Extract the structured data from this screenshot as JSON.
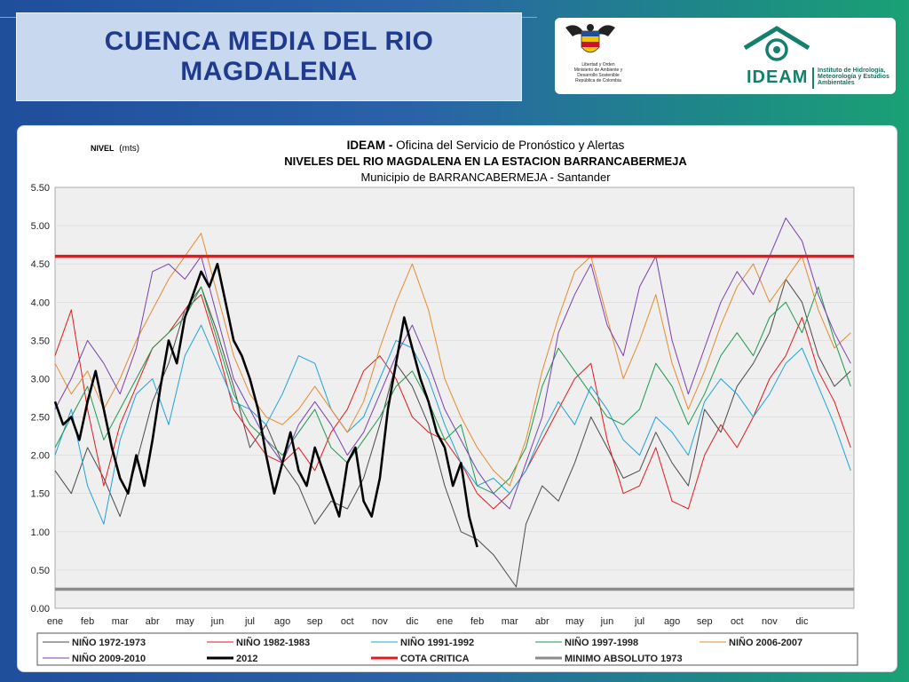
{
  "slide": {
    "title_line1": "CUENCA  MEDIA DEL RIO",
    "title_line2": "MAGDALENA"
  },
  "logos": {
    "government_text": "Libertad y Orden\nMinisterio de Ambiente y\nDesarrollo Sostenible\nRepública de Colombia",
    "ideam_name": "IDEAM",
    "ideam_subtitle": "Instituto de Hidrología, Meteorología y Estudios Ambientales"
  },
  "chart_data": {
    "type": "line",
    "title_bold": "IDEAM - ",
    "title_rest": "Oficina del Servicio de Pronóstico y Alertas",
    "subtitle": "NIVELES DEL RIO MAGDALENA EN LA ESTACION BARRANCABERMEJA",
    "location": "Municipio de BARRANCABERMEJA - Santander",
    "ylabel_bold": "NIVEL",
    "ylabel_unit": "(mts)",
    "ylim": [
      0,
      5.5
    ],
    "yticks": [
      "0.00",
      "0.50",
      "1.00",
      "1.50",
      "2.00",
      "2.50",
      "3.00",
      "3.50",
      "4.00",
      "4.50",
      "5.00",
      "5.50"
    ],
    "x_categories": [
      "ene",
      "feb",
      "mar",
      "abr",
      "may",
      "jun",
      "jul",
      "ago",
      "sep",
      "oct",
      "nov",
      "dic",
      "ene",
      "feb",
      "mar",
      "abr",
      "may",
      "jun",
      "jul",
      "ago",
      "sep",
      "oct",
      "nov",
      "dic"
    ],
    "xlim": [
      0,
      24.6
    ],
    "grid": true,
    "legend_position": "bottom",
    "reference_lines": [
      {
        "name": "COTA CRITICA",
        "value": 4.6,
        "color": "#e31a1c"
      },
      {
        "name": "MINIMO ABSOLUTO 1973",
        "value": 0.25,
        "color": "#8c8c8c"
      }
    ],
    "series": [
      {
        "name": "NIÑO 1972-1973",
        "color": "#4a4a4a",
        "width": 1,
        "x": [
          0,
          0.5,
          1,
          1.5,
          2,
          2.5,
          3,
          3.5,
          4,
          4.5,
          5,
          5.5,
          6,
          6.5,
          7,
          7.5,
          8,
          8.5,
          9,
          9.5,
          10,
          10.5,
          11,
          11.5,
          12,
          12.5,
          13,
          13.5,
          14,
          14.2,
          14.5,
          15,
          15.5,
          16,
          16.5,
          17,
          17.5,
          18,
          18.5,
          19,
          19.5,
          20,
          20.5,
          21,
          21.5,
          22,
          22.5,
          23,
          23.5,
          24,
          24.5
        ],
        "y": [
          1.8,
          1.5,
          2.1,
          1.7,
          1.2,
          1.9,
          2.7,
          3.2,
          3.9,
          4.2,
          3.6,
          2.9,
          2.1,
          2.4,
          1.9,
          1.6,
          1.1,
          1.4,
          1.3,
          1.7,
          2.4,
          3.2,
          2.9,
          2.4,
          1.6,
          1.0,
          0.9,
          0.7,
          0.4,
          0.28,
          1.1,
          1.6,
          1.4,
          1.9,
          2.5,
          2.1,
          1.7,
          1.8,
          2.3,
          1.9,
          1.6,
          2.6,
          2.3,
          2.9,
          3.2,
          3.6,
          4.3,
          4.0,
          3.3,
          2.9,
          3.1
        ]
      },
      {
        "name": "NIÑO 1982-1983",
        "color": "#e31a1c",
        "width": 1,
        "x": [
          0,
          0.5,
          1,
          1.5,
          2,
          2.5,
          3,
          3.5,
          4,
          4.5,
          5,
          5.5,
          6,
          6.5,
          7,
          7.5,
          8,
          8.5,
          9,
          9.5,
          10,
          10.5,
          11,
          11.5,
          12,
          12.5,
          13,
          13.5,
          14,
          14.5,
          15,
          15.5,
          16,
          16.5,
          17,
          17.5,
          18,
          18.5,
          19,
          19.5,
          20,
          20.5,
          21,
          21.5,
          22,
          22.5,
          23,
          23.5,
          24,
          24.5
        ],
        "y": [
          3.3,
          3.9,
          2.6,
          1.6,
          2.4,
          2.9,
          3.4,
          3.6,
          3.9,
          4.1,
          3.4,
          2.6,
          2.3,
          2.0,
          1.9,
          2.1,
          1.8,
          2.3,
          2.6,
          3.1,
          3.3,
          3.0,
          2.5,
          2.3,
          2.2,
          1.9,
          1.5,
          1.3,
          1.5,
          1.8,
          2.2,
          2.6,
          3.0,
          3.2,
          2.2,
          1.5,
          1.6,
          2.1,
          1.4,
          1.3,
          2.0,
          2.4,
          2.1,
          2.5,
          3.0,
          3.3,
          3.8,
          3.1,
          2.7,
          2.1
        ]
      },
      {
        "name": "NIÑO 1991-1992",
        "color": "#1fa2d9",
        "width": 1,
        "x": [
          0,
          0.5,
          1,
          1.5,
          2,
          2.5,
          3,
          3.5,
          4,
          4.5,
          5,
          5.5,
          6,
          6.5,
          7,
          7.5,
          8,
          8.5,
          9,
          9.5,
          10,
          10.5,
          11,
          11.5,
          12,
          12.5,
          13,
          13.5,
          14,
          14.5,
          15,
          15.5,
          16,
          16.5,
          17,
          17.5,
          18,
          18.5,
          19,
          19.5,
          20,
          20.5,
          21,
          21.5,
          22,
          22.5,
          23,
          23.5,
          24,
          24.5
        ],
        "y": [
          2.0,
          2.6,
          1.6,
          1.1,
          2.2,
          2.8,
          3.0,
          2.4,
          3.3,
          3.7,
          3.2,
          2.7,
          2.6,
          2.4,
          2.8,
          3.3,
          3.2,
          2.6,
          2.3,
          2.5,
          3.0,
          3.5,
          3.4,
          3.0,
          2.4,
          1.9,
          1.6,
          1.7,
          1.5,
          1.8,
          2.3,
          2.7,
          2.4,
          2.9,
          2.6,
          2.2,
          2.0,
          2.5,
          2.3,
          2.0,
          2.7,
          3.0,
          2.8,
          2.5,
          2.8,
          3.2,
          3.4,
          2.9,
          2.4,
          1.8
        ]
      },
      {
        "name": "NIÑO 1997-1998",
        "color": "#1c9a4b",
        "width": 1,
        "x": [
          0,
          0.5,
          1,
          1.5,
          2,
          2.5,
          3,
          3.5,
          4,
          4.5,
          5,
          5.5,
          6,
          6.5,
          7,
          7.5,
          8,
          8.5,
          9,
          9.5,
          10,
          10.5,
          11,
          11.5,
          12,
          12.5,
          13,
          13.5,
          14,
          14.5,
          15,
          15.5,
          16,
          16.5,
          17,
          17.5,
          18,
          18.5,
          19,
          19.5,
          20,
          20.5,
          21,
          21.5,
          22,
          22.5,
          23,
          23.5,
          24,
          24.5
        ],
        "y": [
          2.1,
          2.5,
          2.9,
          2.2,
          2.6,
          3.0,
          3.4,
          3.6,
          3.8,
          4.2,
          3.5,
          2.8,
          2.4,
          2.2,
          2.0,
          2.3,
          2.6,
          2.1,
          1.9,
          2.2,
          2.5,
          2.9,
          3.1,
          2.7,
          2.2,
          2.4,
          1.6,
          1.5,
          1.7,
          2.1,
          2.9,
          3.4,
          3.1,
          2.8,
          2.5,
          2.4,
          2.6,
          3.2,
          2.9,
          2.4,
          2.8,
          3.3,
          3.6,
          3.3,
          3.8,
          4.0,
          3.6,
          4.2,
          3.5,
          2.9
        ]
      },
      {
        "name": "NIÑO 2006-2007",
        "color": "#e68a2e",
        "width": 1,
        "x": [
          0,
          0.5,
          1,
          1.5,
          2,
          2.5,
          3,
          3.5,
          4,
          4.5,
          5,
          5.5,
          6,
          6.5,
          7,
          7.5,
          8,
          8.5,
          9,
          9.5,
          10,
          10.5,
          11,
          11.5,
          12,
          12.5,
          13,
          13.5,
          14,
          14.5,
          15,
          15.5,
          16,
          16.5,
          17,
          17.5,
          18,
          18.5,
          19,
          19.5,
          20,
          20.5,
          21,
          21.5,
          22,
          22.5,
          23,
          23.5,
          24,
          24.5
        ],
        "y": [
          3.2,
          2.8,
          3.1,
          2.6,
          3.0,
          3.5,
          3.9,
          4.3,
          4.6,
          4.9,
          4.1,
          3.3,
          2.8,
          2.5,
          2.4,
          2.6,
          2.9,
          2.6,
          2.3,
          2.7,
          3.4,
          4.0,
          4.5,
          3.9,
          3.0,
          2.5,
          2.1,
          1.8,
          1.6,
          2.2,
          3.1,
          3.8,
          4.4,
          4.6,
          3.8,
          3.0,
          3.5,
          4.1,
          3.2,
          2.6,
          3.1,
          3.7,
          4.2,
          4.5,
          4.0,
          4.3,
          4.6,
          3.9,
          3.4,
          3.6
        ]
      },
      {
        "name": "NIÑO 2009-2010",
        "color": "#7b3fb0",
        "width": 1,
        "x": [
          0,
          0.5,
          1,
          1.5,
          2,
          2.5,
          3,
          3.5,
          4,
          4.5,
          5,
          5.5,
          6,
          6.5,
          7,
          7.5,
          8,
          8.5,
          9,
          9.5,
          10,
          10.5,
          11,
          11.5,
          12,
          12.5,
          13,
          13.5,
          14,
          14.5,
          15,
          15.5,
          16,
          16.5,
          17,
          17.5,
          18,
          18.5,
          19,
          19.5,
          20,
          20.5,
          21,
          21.5,
          22,
          22.5,
          23,
          23.5,
          24,
          24.5
        ],
        "y": [
          2.6,
          3.0,
          3.5,
          3.2,
          2.8,
          3.4,
          4.4,
          4.5,
          4.3,
          4.6,
          3.8,
          3.0,
          2.6,
          2.2,
          1.9,
          2.4,
          2.7,
          2.4,
          2.0,
          2.3,
          2.8,
          3.3,
          3.7,
          3.2,
          2.6,
          2.2,
          1.8,
          1.5,
          1.3,
          1.9,
          2.5,
          3.6,
          4.1,
          4.5,
          3.7,
          3.3,
          4.2,
          4.6,
          3.5,
          2.8,
          3.4,
          4.0,
          4.4,
          4.1,
          4.6,
          5.1,
          4.8,
          4.1,
          3.6,
          3.2
        ]
      },
      {
        "name": "2012",
        "color": "#000000",
        "width": 2.6,
        "x": [
          0,
          0.25,
          0.5,
          0.75,
          1,
          1.25,
          1.5,
          1.75,
          2,
          2.25,
          2.5,
          2.75,
          3,
          3.25,
          3.5,
          3.75,
          4,
          4.25,
          4.5,
          4.75,
          5,
          5.25,
          5.5,
          5.75,
          6,
          6.25,
          6.5,
          6.75,
          7,
          7.25,
          7.5,
          7.75,
          8,
          8.25,
          8.5,
          8.75,
          9,
          9.25,
          9.5,
          9.75,
          10,
          10.25,
          10.5,
          10.75,
          11,
          11.25,
          11.5,
          11.75,
          12,
          12.25,
          12.5,
          12.75,
          13
        ],
        "y": [
          2.7,
          2.4,
          2.5,
          2.2,
          2.7,
          3.1,
          2.6,
          2.1,
          1.7,
          1.5,
          2.0,
          1.6,
          2.2,
          2.9,
          3.5,
          3.2,
          3.8,
          4.1,
          4.4,
          4.2,
          4.5,
          4.0,
          3.5,
          3.3,
          3.0,
          2.6,
          2.0,
          1.5,
          1.9,
          2.3,
          1.8,
          1.6,
          2.1,
          1.8,
          1.5,
          1.2,
          1.9,
          2.1,
          1.4,
          1.2,
          1.7,
          2.6,
          3.2,
          3.8,
          3.4,
          3.0,
          2.7,
          2.3,
          2.1,
          1.6,
          1.9,
          1.2,
          0.8
        ]
      }
    ],
    "legend": [
      {
        "label": "NIÑO 1972-1973",
        "color": "#4a4a4a",
        "width": 1
      },
      {
        "label": "NIÑO 1982-1983",
        "color": "#e31a1c",
        "width": 1
      },
      {
        "label": "NIÑO 1991-1992",
        "color": "#1fa2d9",
        "width": 1
      },
      {
        "label": "NIÑO 1997-1998",
        "color": "#1c9a4b",
        "width": 1
      },
      {
        "label": "NIÑO 2006-2007",
        "color": "#e68a2e",
        "width": 1
      },
      {
        "label": "NIÑO 2009-2010",
        "color": "#7b3fb0",
        "width": 1
      },
      {
        "label": "2012",
        "color": "#000000",
        "width": 3
      },
      {
        "label": "COTA CRITICA",
        "color": "#e31a1c",
        "width": 3
      },
      {
        "label": "MINIMO ABSOLUTO 1973",
        "color": "#8c8c8c",
        "width": 3
      }
    ]
  }
}
